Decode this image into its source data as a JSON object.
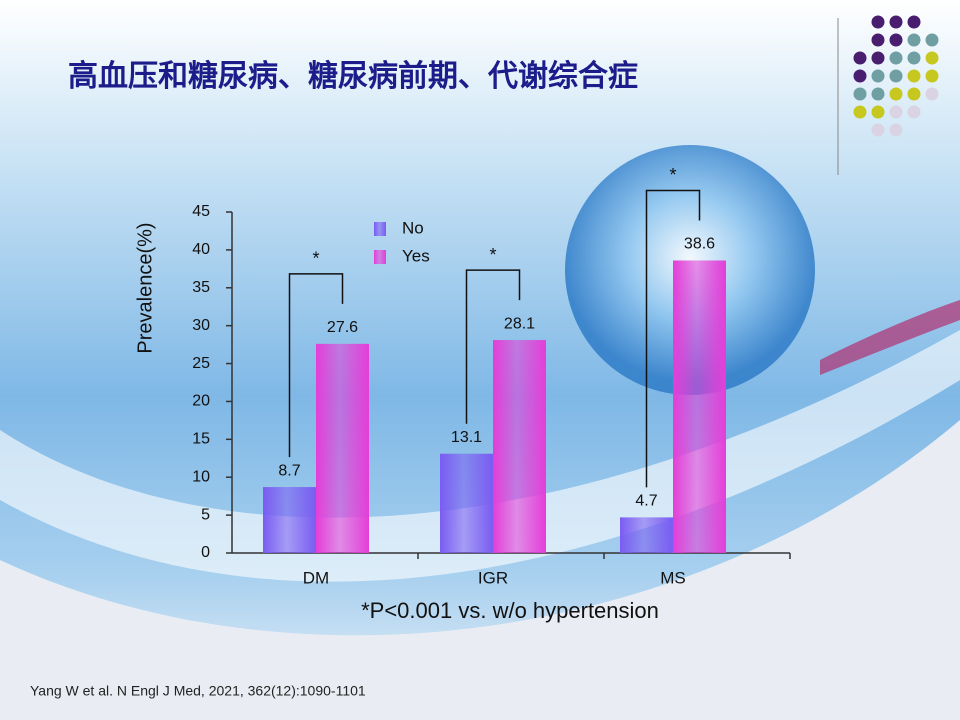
{
  "title": "高血压和糖尿病、糖尿病前期、代谢综合症",
  "chart_data": {
    "type": "bar",
    "categories": [
      "DM",
      "IGR",
      "MS"
    ],
    "series": [
      {
        "name": "No",
        "color": "#7a5cf2",
        "values": [
          8.7,
          13.1,
          4.7
        ]
      },
      {
        "name": "Yes",
        "color": "#e43ed8",
        "values": [
          27.6,
          28.1,
          38.6
        ]
      }
    ],
    "y_label": "Prevalence(%)",
    "ylim": [
      0,
      45
    ],
    "yticks": [
      0,
      5,
      10,
      15,
      20,
      25,
      30,
      35,
      40,
      45
    ],
    "annotations": [
      "*",
      "*",
      "*"
    ],
    "footnote": "*P<0.001 vs. w/o hypertension"
  },
  "citation": "Yang W et al. N Engl J Med, 2021, 362(12):1090-1101"
}
